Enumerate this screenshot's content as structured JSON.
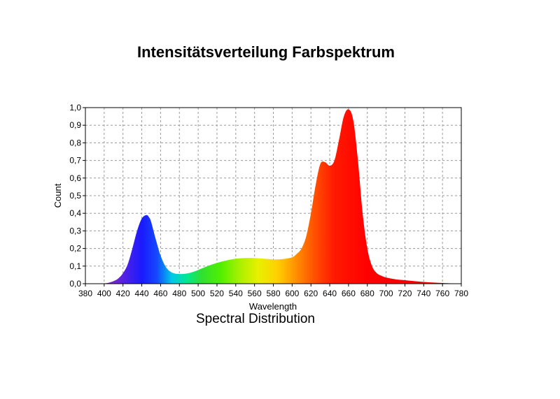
{
  "caption": "Spectral Distribution",
  "chart_data": {
    "type": "area",
    "title": "Intensitätsverteilung Farbspektrum",
    "xlabel": "Wavelength",
    "ylabel": "Count",
    "xlim": [
      380,
      780
    ],
    "ylim": [
      0,
      1
    ],
    "grid": true,
    "x_tick_labels": [
      "380",
      "400",
      "420",
      "440",
      "460",
      "480",
      "500",
      "520",
      "540",
      "560",
      "580",
      "600",
      "620",
      "640",
      "660",
      "680",
      "700",
      "720",
      "740",
      "760",
      "780"
    ],
    "y_tick_labels": [
      "0,0",
      "0,1",
      "0,2",
      "0,3",
      "0,4",
      "0,5",
      "0,6",
      "0,7",
      "0,8",
      "0,9",
      "1,0"
    ],
    "x": [
      380,
      390,
      400,
      405,
      410,
      415,
      420,
      425,
      430,
      435,
      440,
      445,
      448,
      450,
      455,
      460,
      465,
      470,
      475,
      480,
      485,
      490,
      495,
      500,
      510,
      520,
      530,
      540,
      550,
      560,
      570,
      580,
      590,
      600,
      605,
      610,
      615,
      620,
      625,
      630,
      635,
      640,
      645,
      650,
      655,
      660,
      665,
      670,
      675,
      680,
      685,
      690,
      695,
      700,
      710,
      720,
      740,
      760,
      780
    ],
    "y": [
      0,
      0,
      0.002,
      0.006,
      0.015,
      0.03,
      0.06,
      0.11,
      0.2,
      0.3,
      0.37,
      0.39,
      0.375,
      0.35,
      0.25,
      0.16,
      0.1,
      0.07,
      0.058,
      0.055,
      0.056,
      0.06,
      0.068,
      0.078,
      0.1,
      0.118,
      0.132,
      0.142,
      0.146,
      0.146,
      0.142,
      0.138,
      0.14,
      0.15,
      0.17,
      0.2,
      0.27,
      0.4,
      0.56,
      0.68,
      0.69,
      0.67,
      0.7,
      0.82,
      0.95,
      0.99,
      0.93,
      0.7,
      0.4,
      0.2,
      0.1,
      0.06,
      0.045,
      0.035,
      0.025,
      0.02,
      0.01,
      0.004,
      0
    ]
  }
}
